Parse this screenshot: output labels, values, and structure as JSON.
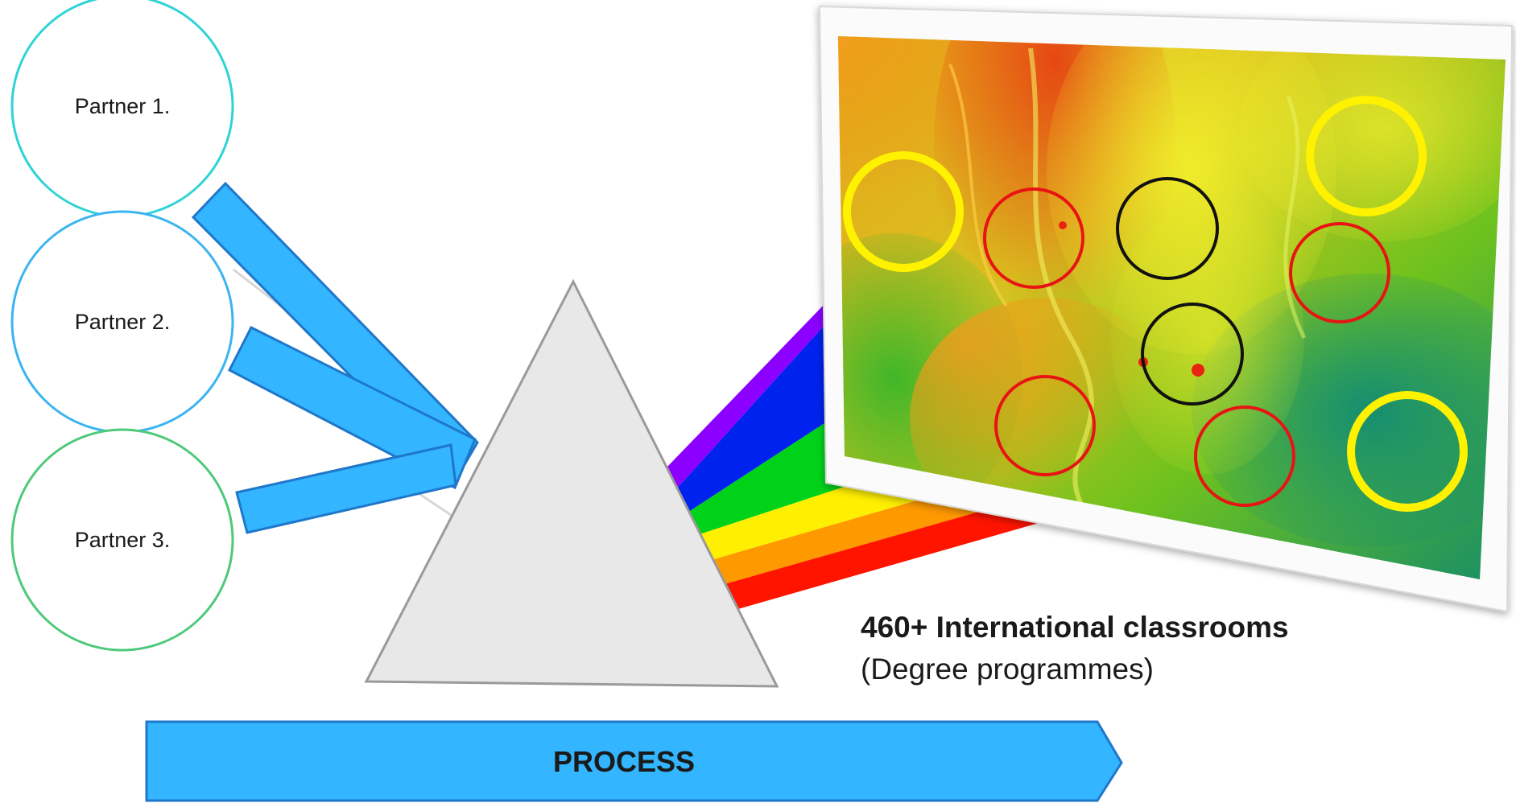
{
  "partners": [
    {
      "label": "Partner 1.",
      "color": "#2ED3D6"
    },
    {
      "label": "Partner 2.",
      "color": "#3BB4F2"
    },
    {
      "label": "Partner 3.",
      "color": "#4EC97A"
    }
  ],
  "classrooms": {
    "title": "460+ International classrooms",
    "subtitle": "(Degree programmes)"
  },
  "process": {
    "label": "PROCESS",
    "color": "#33B5FF"
  },
  "colors": {
    "arrow_blue": "#33B5FF",
    "arrow_border": "#1F77C9",
    "prism_fill": "#E8E8E8",
    "prism_stroke": "#9A9A9A",
    "spectrum": [
      "#8B00FF",
      "#0022EE",
      "#00D21A",
      "#FFEF00",
      "#FF9900",
      "#FF1400"
    ],
    "marker_yellow": "#FFF200",
    "marker_red": "#E81313",
    "marker_black": "#111111"
  }
}
